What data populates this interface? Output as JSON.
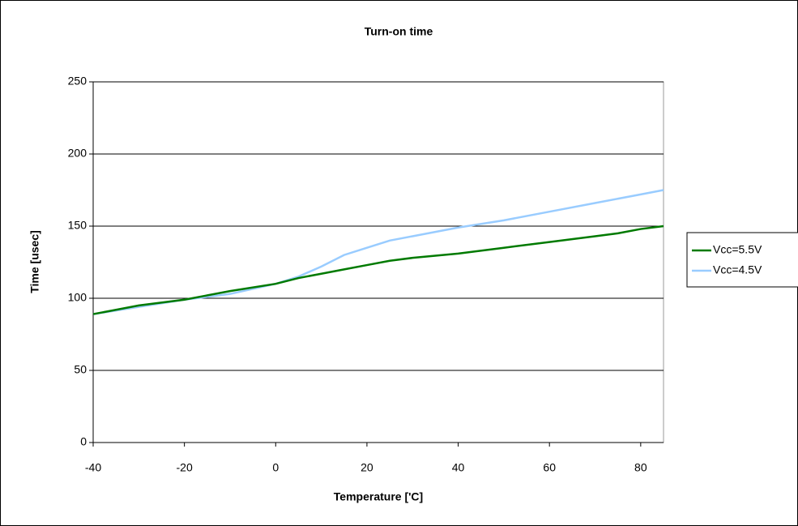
{
  "chart_data": {
    "type": "line",
    "title": "Turn-on time",
    "x_label": "Temperature ['C]",
    "y_label": "Time [usec]",
    "xlim": [
      -40,
      85
    ],
    "xticks": [
      -40,
      -20,
      0,
      20,
      40,
      60,
      80
    ],
    "ylim": [
      0,
      250
    ],
    "yticks": [
      0,
      50,
      100,
      150,
      200,
      250
    ],
    "grid": true,
    "legend": "right",
    "series": [
      {
        "name": "Vcc=5.5V",
        "color": "#007a00",
        "x": [
          -40,
          -30,
          -20,
          -10,
          0,
          5,
          10,
          15,
          20,
          25,
          30,
          40,
          50,
          60,
          70,
          75,
          80,
          85
        ],
        "values": [
          89,
          95,
          99,
          105,
          110,
          114,
          117,
          120,
          123,
          126,
          128,
          131,
          135,
          139,
          143,
          145,
          148,
          150
        ]
      },
      {
        "name": "Vcc=4.5V",
        "color": "#99ccff",
        "x": [
          -40,
          -30,
          -20,
          -10,
          0,
          5,
          10,
          15,
          20,
          25,
          30,
          40,
          50,
          60,
          70,
          80,
          85
        ],
        "values": [
          89,
          94,
          99,
          103,
          110,
          115,
          122,
          130,
          135,
          140,
          143,
          149,
          154,
          160,
          166,
          172,
          175
        ]
      }
    ]
  }
}
